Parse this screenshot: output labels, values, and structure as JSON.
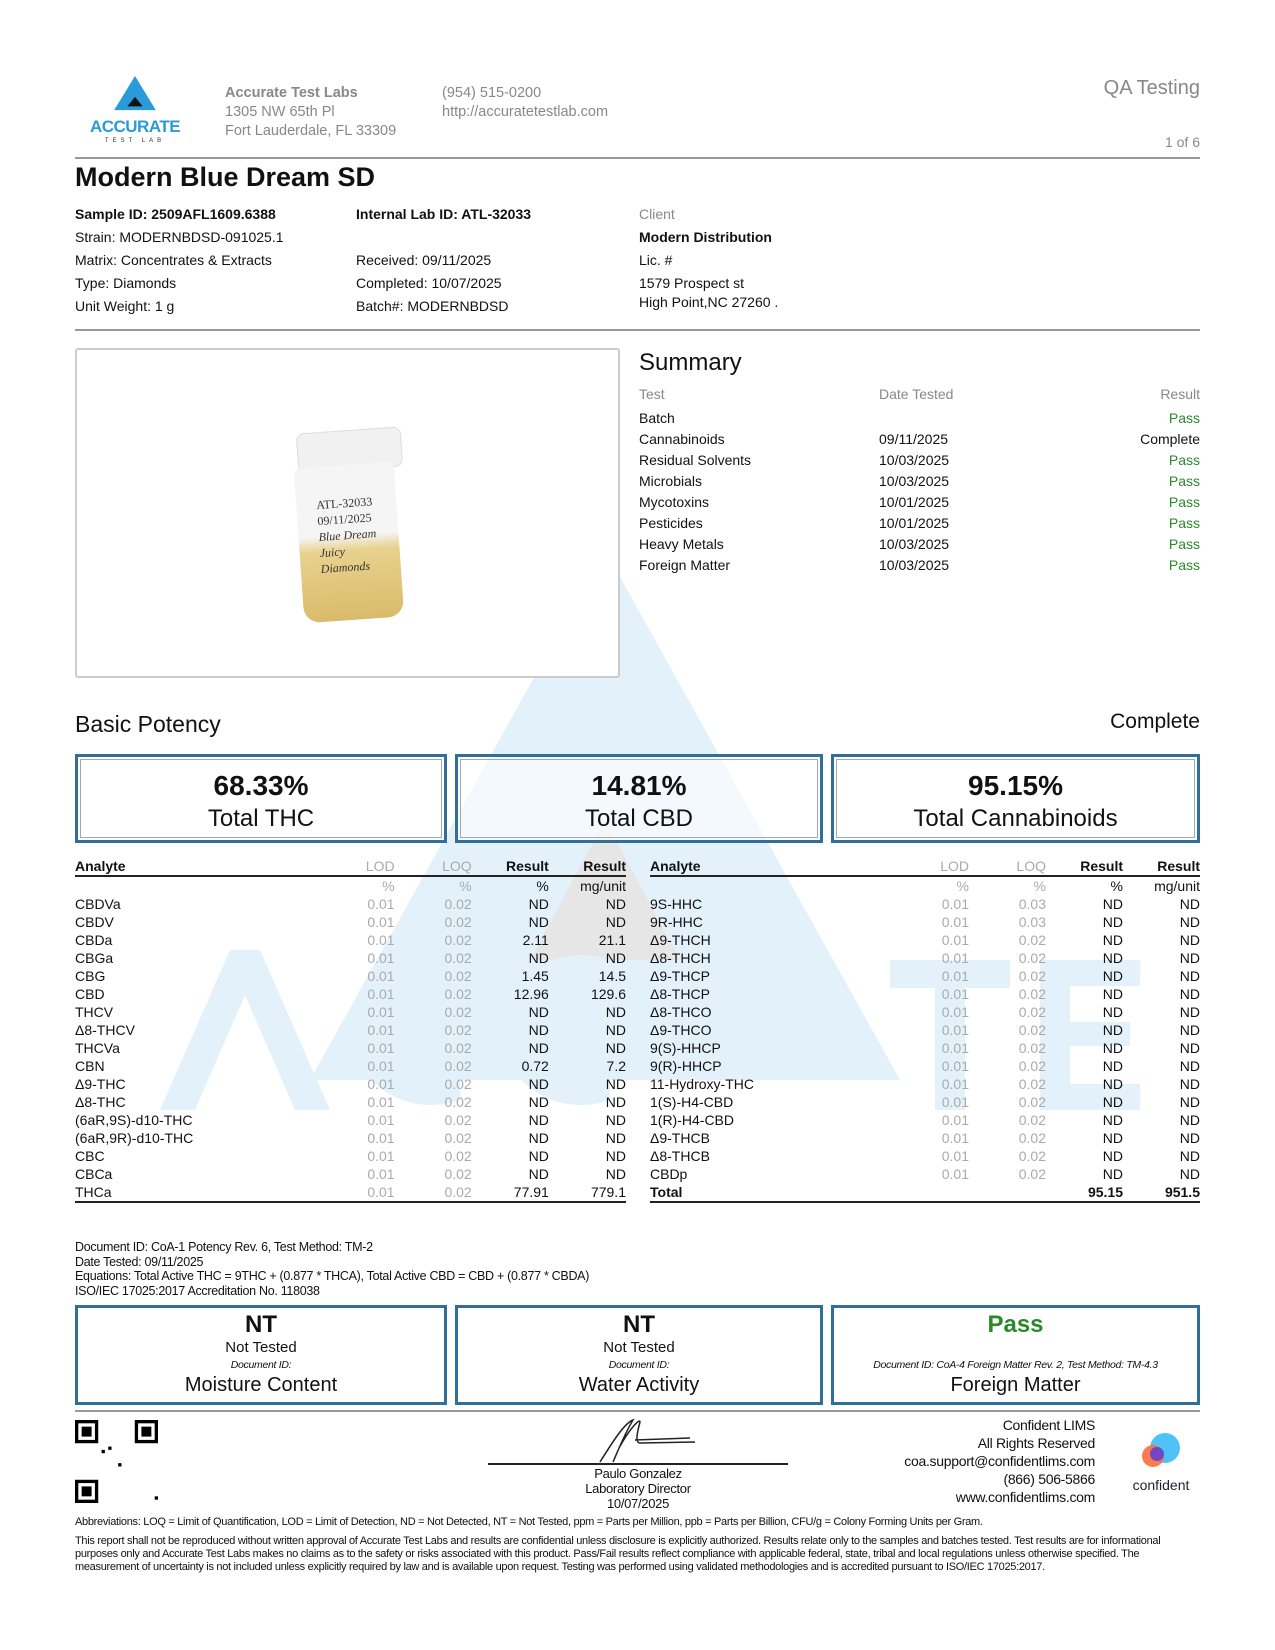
{
  "lab": {
    "name": "Accurate Test Labs",
    "address1": "1305 NW 65th Pl",
    "address2": "Fort Lauderdale, FL 33309",
    "phone": "(954) 515-0200",
    "website": "http://accuratetestlab.com",
    "logo_text": "ACCURATE",
    "logo_sub": "TEST LAB"
  },
  "header": {
    "report_type": "QA Testing",
    "page": "1 of 6"
  },
  "title": "Modern Blue Dream SD",
  "sample": {
    "sample_id": "Sample ID: 2509AFL1609.6388",
    "strain": "Strain: MODERNBDSD-091025.1",
    "matrix": "Matrix: Concentrates & Extracts",
    "type": "Type: Diamonds",
    "unit_weight": "Unit Weight: 1 g",
    "internal_id": "Internal Lab ID: ATL-32033",
    "received": "Received: 09/11/2025",
    "completed": "Completed: 10/07/2025",
    "batch": "Batch#: MODERNBDSD"
  },
  "client": {
    "label": "Client",
    "name": "Modern Distribution",
    "lic": "Lic. #",
    "address1": "1579 Prospect st",
    "address2": "High Point,NC 27260 ."
  },
  "photo_label": [
    "ATL-32033",
    "09/11/2025",
    "Blue Dream",
    "Juicy",
    "Diamonds"
  ],
  "summary": {
    "title": "Summary",
    "headers": [
      "Test",
      "Date Tested",
      "Result"
    ],
    "rows": [
      [
        "Batch",
        "",
        "Pass"
      ],
      [
        "Cannabinoids",
        "09/11/2025",
        "Complete"
      ],
      [
        "Residual Solvents",
        "10/03/2025",
        "Pass"
      ],
      [
        "Microbials",
        "10/03/2025",
        "Pass"
      ],
      [
        "Mycotoxins",
        "10/01/2025",
        "Pass"
      ],
      [
        "Pesticides",
        "10/01/2025",
        "Pass"
      ],
      [
        "Heavy Metals",
        "10/03/2025",
        "Pass"
      ],
      [
        "Foreign Matter",
        "10/03/2025",
        "Pass"
      ]
    ]
  },
  "potency": {
    "title": "Basic Potency",
    "status": "Complete",
    "totals": [
      {
        "value": "68.33%",
        "label": "Total THC"
      },
      {
        "value": "14.81%",
        "label": "Total CBD"
      },
      {
        "value": "95.15%",
        "label": "Total Cannabinoids"
      }
    ],
    "headers": [
      "Analyte",
      "LOD",
      "LOQ",
      "Result",
      "Result"
    ],
    "units": [
      "",
      "%",
      "%",
      "%",
      "mg/unit"
    ],
    "left": [
      [
        "CBDVa",
        "0.01",
        "0.02",
        "ND",
        "ND"
      ],
      [
        "CBDV",
        "0.01",
        "0.02",
        "ND",
        "ND"
      ],
      [
        "CBDa",
        "0.01",
        "0.02",
        "2.11",
        "21.1"
      ],
      [
        "CBGa",
        "0.01",
        "0.02",
        "ND",
        "ND"
      ],
      [
        "CBG",
        "0.01",
        "0.02",
        "1.45",
        "14.5"
      ],
      [
        "CBD",
        "0.01",
        "0.02",
        "12.96",
        "129.6"
      ],
      [
        "THCV",
        "0.01",
        "0.02",
        "ND",
        "ND"
      ],
      [
        "Δ8-THCV",
        "0.01",
        "0.02",
        "ND",
        "ND"
      ],
      [
        "THCVa",
        "0.01",
        "0.02",
        "ND",
        "ND"
      ],
      [
        "CBN",
        "0.01",
        "0.02",
        "0.72",
        "7.2"
      ],
      [
        "Δ9-THC",
        "0.01",
        "0.02",
        "ND",
        "ND"
      ],
      [
        "Δ8-THC",
        "0.01",
        "0.02",
        "ND",
        "ND"
      ],
      [
        "(6aR,9S)-d10-THC",
        "0.01",
        "0.02",
        "ND",
        "ND"
      ],
      [
        "(6aR,9R)-d10-THC",
        "0.01",
        "0.02",
        "ND",
        "ND"
      ],
      [
        "CBC",
        "0.01",
        "0.02",
        "ND",
        "ND"
      ],
      [
        "CBCa",
        "0.01",
        "0.02",
        "ND",
        "ND"
      ],
      [
        "THCa",
        "0.01",
        "0.02",
        "77.91",
        "779.1"
      ]
    ],
    "right": [
      [
        "9S-HHC",
        "0.01",
        "0.03",
        "ND",
        "ND"
      ],
      [
        "9R-HHC",
        "0.01",
        "0.03",
        "ND",
        "ND"
      ],
      [
        "Δ9-THCH",
        "0.01",
        "0.02",
        "ND",
        "ND"
      ],
      [
        "Δ8-THCH",
        "0.01",
        "0.02",
        "ND",
        "ND"
      ],
      [
        "Δ9-THCP",
        "0.01",
        "0.02",
        "ND",
        "ND"
      ],
      [
        "Δ8-THCP",
        "0.01",
        "0.02",
        "ND",
        "ND"
      ],
      [
        "Δ8-THCO",
        "0.01",
        "0.02",
        "ND",
        "ND"
      ],
      [
        "Δ9-THCO",
        "0.01",
        "0.02",
        "ND",
        "ND"
      ],
      [
        "9(S)-HHCP",
        "0.01",
        "0.02",
        "ND",
        "ND"
      ],
      [
        "9(R)-HHCP",
        "0.01",
        "0.02",
        "ND",
        "ND"
      ],
      [
        "11-Hydroxy-THC",
        "0.01",
        "0.02",
        "ND",
        "ND"
      ],
      [
        "1(S)-H4-CBD",
        "0.01",
        "0.02",
        "ND",
        "ND"
      ],
      [
        "1(R)-H4-CBD",
        "0.01",
        "0.02",
        "ND",
        "ND"
      ],
      [
        "Δ9-THCB",
        "0.01",
        "0.02",
        "ND",
        "ND"
      ],
      [
        "Δ8-THCB",
        "0.01",
        "0.02",
        "ND",
        "ND"
      ],
      [
        "CBDp",
        "0.01",
        "0.02",
        "ND",
        "ND"
      ]
    ],
    "total": [
      "Total",
      "",
      "",
      "95.15",
      "951.5"
    ],
    "notes": [
      "Document ID: CoA-1 Potency Rev. 6, Test Method: TM-2",
      "Date Tested: 09/11/2025",
      "Equations: Total Active THC = 9THC + (0.877 * THCA), Total Active CBD = CBD + (0.877 * CBDA)",
      "ISO/IEC 17025:2017 Accreditation No. 118038"
    ]
  },
  "other_tests": [
    {
      "value": "NT",
      "status": "Not Tested",
      "doc": "Document ID:",
      "name": "Moisture Content"
    },
    {
      "value": "NT",
      "status": "Not Tested",
      "doc": "Document ID:",
      "name": "Water Activity"
    },
    {
      "value": "Pass",
      "status": "",
      "doc": "Document ID: CoA-4 Foreign Matter Rev. 2, Test Method: TM-4.3",
      "name": "Foreign Matter"
    }
  ],
  "signature": {
    "name": "Paulo Gonzalez",
    "title": "Laboratory Director",
    "date": "10/07/2025"
  },
  "lims": {
    "lines": [
      "Confident LIMS",
      "All Rights Reserved",
      "coa.support@confidentlims.com",
      "(866) 506-5866",
      "www.confidentlims.com"
    ],
    "logo_text": "confident"
  },
  "abbreviations": "Abbreviations: LOQ = Limit of Quantification, LOD = Limit of Detection, ND = Not Detected, NT = Not Tested, ppm = Parts per Million, ppb = Parts per Billion, CFU/g = Colony Forming Units per Gram.",
  "disclaimer": "This report shall not be reproduced without written approval of Accurate Test Labs and results are confidential unless disclosure is explicitly authorized. Results relate only to the samples and batches tested. Test results are for informational purposes only and Accurate Test Labs makes no claims as to the safety or risks associated with this product. Pass/Fail results reflect compliance with applicable federal, state, tribal and local regulations unless otherwise specified. The measurement of uncertainty is not included unless explicitly required by law and is available upon request. Testing was performed using validated methodologies and is accredited pursuant to ISO/IEC 17025:2017.",
  "colors": {
    "brand_blue": "#2a9ad8",
    "box_border": "#2f6f9a",
    "pass_green": "#2a8a2a"
  }
}
